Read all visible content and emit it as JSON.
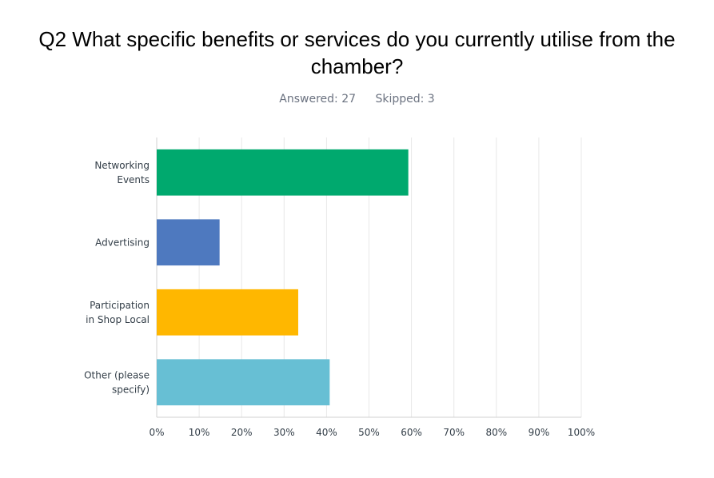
{
  "header": {
    "question": "Q2 What specific benefits or services do you currently utilise from the chamber?",
    "answered": "Answered: 27",
    "skipped": "Skipped: 3"
  },
  "chart_data": {
    "type": "bar",
    "orientation": "horizontal",
    "title": "Q2 What specific benefits or services do you currently utilise from the chamber?",
    "categories": [
      [
        "Networking",
        "Events"
      ],
      [
        "Advertising"
      ],
      [
        "Participation",
        "in Shop Local"
      ],
      [
        "Other (please",
        "specify)"
      ]
    ],
    "values": [
      59.26,
      14.81,
      33.33,
      40.74
    ],
    "colors": [
      "#00a96e",
      "#4e79bf",
      "#ffb700",
      "#67bfd4"
    ],
    "xlim": [
      0,
      100
    ],
    "xticks": [
      "0%",
      "10%",
      "20%",
      "30%",
      "40%",
      "50%",
      "60%",
      "70%",
      "80%",
      "90%",
      "100%"
    ],
    "grid": true
  }
}
